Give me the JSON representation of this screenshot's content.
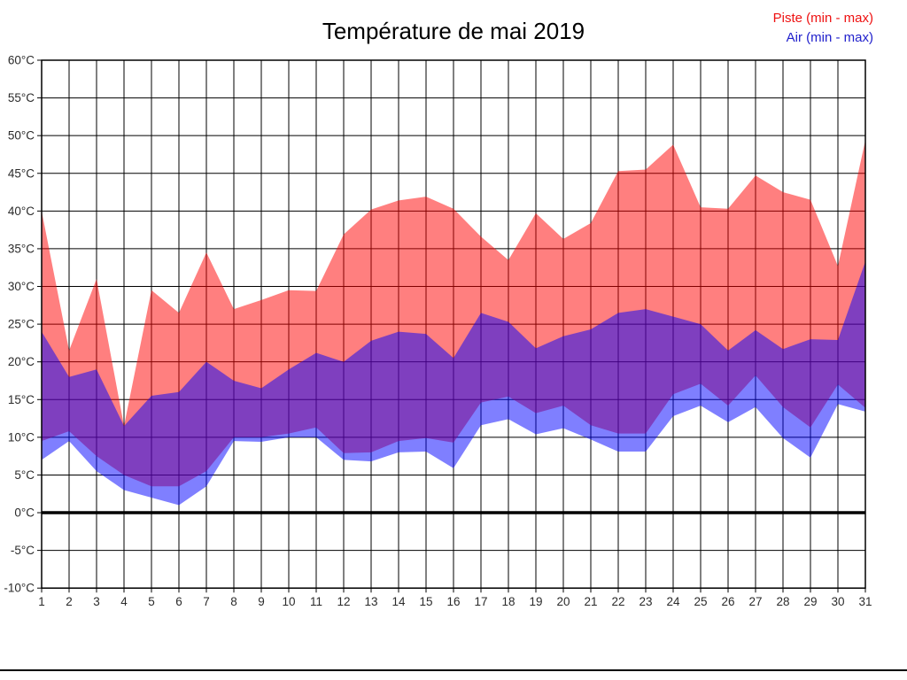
{
  "title": "Température de mai 2019",
  "legend": {
    "piste_label": "Piste (min - max)",
    "air_label": "Air (min - max)",
    "piste_color": "#ee1111",
    "air_color": "#2121cc"
  },
  "chart_data": {
    "type": "area",
    "title": "Température de mai 2019",
    "xlabel": "",
    "ylabel": "",
    "x": [
      1,
      2,
      3,
      4,
      5,
      6,
      7,
      8,
      9,
      10,
      11,
      12,
      13,
      14,
      15,
      16,
      17,
      18,
      19,
      20,
      21,
      22,
      23,
      24,
      25,
      26,
      27,
      28,
      29,
      30,
      31
    ],
    "xticklabels": [
      "1",
      "2",
      "3",
      "4",
      "5",
      "6",
      "7",
      "8",
      "9",
      "10",
      "11",
      "12",
      "13",
      "14",
      "15",
      "16",
      "17",
      "18",
      "19",
      "20",
      "21",
      "22",
      "23",
      "24",
      "25",
      "26",
      "27",
      "28",
      "29",
      "30",
      "31"
    ],
    "yticks": [
      -10,
      -5,
      0,
      5,
      10,
      15,
      20,
      25,
      30,
      35,
      40,
      45,
      50,
      55,
      60
    ],
    "yticklabels": [
      "-10°C",
      "-5°C",
      "0°C",
      "5°C",
      "10°C",
      "15°C",
      "20°C",
      "25°C",
      "30°C",
      "35°C",
      "40°C",
      "45°C",
      "50°C",
      "55°C",
      "60°C"
    ],
    "ylim": [
      -10,
      60
    ],
    "xlim": [
      1,
      31
    ],
    "grid": true,
    "zero_line_at": 0,
    "legend_position": "top-right",
    "series": [
      {
        "name": "Piste (min - max)",
        "color": "#ff0000",
        "fill_opacity": 0.5,
        "min": [
          9.5,
          10.8,
          7.5,
          5,
          3.5,
          3.5,
          5.5,
          10,
          10,
          10.5,
          11.3,
          7.9,
          8,
          9.5,
          9.9,
          9.3,
          14.6,
          15.4,
          13.2,
          14.2,
          11.6,
          10.5,
          10.5,
          15.7,
          17.1,
          14.2,
          18.2,
          14,
          11.3,
          17,
          13.9
        ],
        "max": [
          40,
          21.5,
          31,
          11.5,
          29.5,
          26.5,
          34.5,
          27,
          28.2,
          29.5,
          29.4,
          36.9,
          40.2,
          41.4,
          41.9,
          40.3,
          36.6,
          33.5,
          39.7,
          36.3,
          38.4,
          45.3,
          45.5,
          48.8,
          40.5,
          40.3,
          44.7,
          42.5,
          41.5,
          32.7,
          49.4
        ]
      },
      {
        "name": "Air (min - max)",
        "color": "#0000ff",
        "fill_opacity": 0.5,
        "min": [
          7,
          9.5,
          5.5,
          3,
          2,
          1,
          3.5,
          9.5,
          9.4,
          10,
          10,
          7,
          6.8,
          8,
          8.1,
          5.9,
          11.6,
          12.4,
          10.4,
          11.2,
          9.7,
          8.1,
          8.1,
          12.8,
          14.2,
          12,
          14,
          9.9,
          7.3,
          14.4,
          13.4
        ],
        "max": [
          24,
          18,
          19,
          11.5,
          15.5,
          16,
          20,
          17.5,
          16.5,
          19,
          21.2,
          20,
          22.8,
          24,
          23.7,
          20.5,
          26.5,
          25.3,
          21.8,
          23.4,
          24.3,
          26.5,
          27,
          26,
          25,
          21.5,
          24.2,
          21.7,
          23,
          22.9,
          33.3
        ]
      }
    ]
  },
  "style": {
    "grid_color": "#000000",
    "axis_color": "#000000",
    "tick_label_color": "#2b2b2b",
    "background": "#ffffff"
  }
}
